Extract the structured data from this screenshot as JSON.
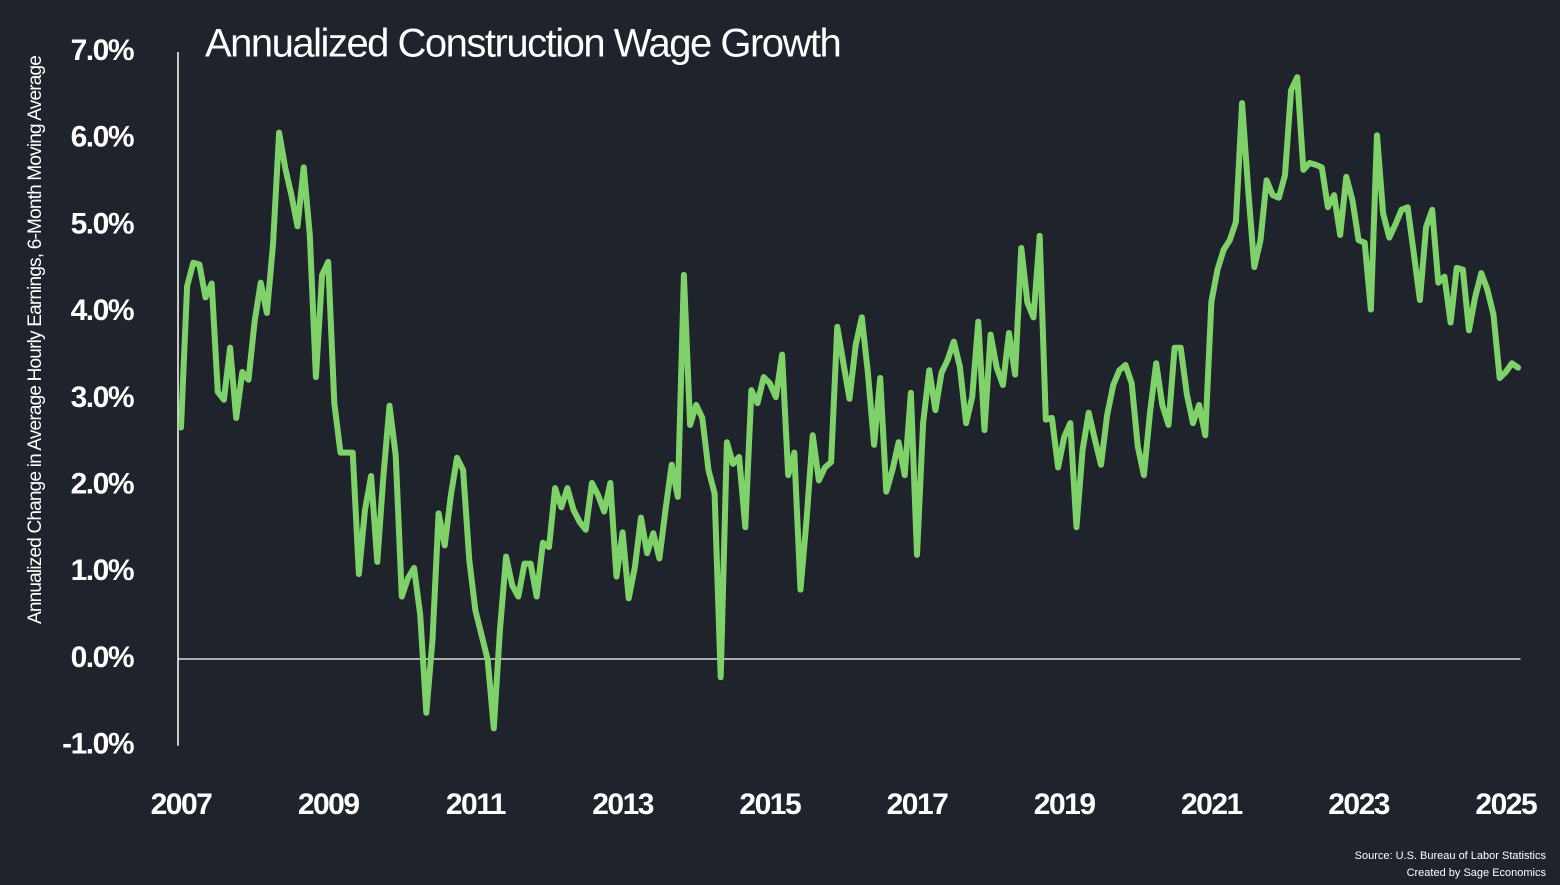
{
  "chart_data": {
    "type": "line",
    "title": "Annualized Construction Wage Growth",
    "y_label": "Annualized Change in Average Hourly Earnings, 6-Month Moving Average",
    "source": "Source: U.S. Bureau of Labor Statistics",
    "credit": "Created by Sage Economics",
    "xlim": [
      2007,
      2025.2
    ],
    "xticks": [
      2007,
      2009,
      2011,
      2013,
      2015,
      2017,
      2019,
      2021,
      2023,
      2025
    ],
    "ylim": [
      -1,
      7
    ],
    "yticks": [
      {
        "value": -1,
        "label": "-1.0%"
      },
      {
        "value": 0,
        "label": "0.0%"
      },
      {
        "value": 1,
        "label": "1.0%"
      },
      {
        "value": 2,
        "label": "2.0%"
      },
      {
        "value": 3,
        "label": "3.0%"
      },
      {
        "value": 4,
        "label": "4.0%"
      },
      {
        "value": 5,
        "label": "5.0%"
      },
      {
        "value": 6,
        "label": "6.0%"
      },
      {
        "value": 7,
        "label": "7.0%"
      }
    ],
    "x": [
      2007,
      2007.083,
      2007.167,
      2007.25,
      2007.333,
      2007.417,
      2007.5,
      2007.583,
      2007.667,
      2007.75,
      2007.833,
      2007.917,
      2008,
      2008.083,
      2008.167,
      2008.25,
      2008.333,
      2008.417,
      2008.5,
      2008.583,
      2008.667,
      2008.75,
      2008.833,
      2008.917,
      2009,
      2009.083,
      2009.167,
      2009.25,
      2009.333,
      2009.417,
      2009.5,
      2009.583,
      2009.667,
      2009.75,
      2009.833,
      2009.917,
      2010,
      2010.083,
      2010.167,
      2010.25,
      2010.333,
      2010.417,
      2010.5,
      2010.583,
      2010.667,
      2010.75,
      2010.833,
      2010.917,
      2011,
      2011.083,
      2011.167,
      2011.25,
      2011.333,
      2011.417,
      2011.5,
      2011.583,
      2011.667,
      2011.75,
      2011.833,
      2011.917,
      2012,
      2012.083,
      2012.167,
      2012.25,
      2012.333,
      2012.417,
      2012.5,
      2012.583,
      2012.667,
      2012.75,
      2012.833,
      2012.917,
      2013,
      2013.083,
      2013.167,
      2013.25,
      2013.333,
      2013.417,
      2013.5,
      2013.583,
      2013.667,
      2013.75,
      2013.833,
      2013.917,
      2014,
      2014.083,
      2014.167,
      2014.25,
      2014.333,
      2014.417,
      2014.5,
      2014.583,
      2014.667,
      2014.75,
      2014.833,
      2014.917,
      2015,
      2015.083,
      2015.167,
      2015.25,
      2015.333,
      2015.417,
      2015.5,
      2015.583,
      2015.667,
      2015.75,
      2015.833,
      2015.917,
      2016,
      2016.083,
      2016.167,
      2016.25,
      2016.333,
      2016.417,
      2016.5,
      2016.583,
      2016.667,
      2016.75,
      2016.833,
      2016.917,
      2017,
      2017.083,
      2017.167,
      2017.25,
      2017.333,
      2017.417,
      2017.5,
      2017.583,
      2017.667,
      2017.75,
      2017.833,
      2017.917,
      2018,
      2018.083,
      2018.167,
      2018.25,
      2018.333,
      2018.417,
      2018.5,
      2018.583,
      2018.667,
      2018.75,
      2018.833,
      2018.917,
      2019,
      2019.083,
      2019.167,
      2019.25,
      2019.333,
      2019.417,
      2019.5,
      2019.583,
      2019.667,
      2019.75,
      2019.833,
      2019.917,
      2020,
      2020.083,
      2020.167,
      2020.25,
      2020.333,
      2020.417,
      2020.5,
      2020.583,
      2020.667,
      2020.75,
      2020.833,
      2020.917,
      2021,
      2021.083,
      2021.167,
      2021.25,
      2021.333,
      2021.417,
      2021.5,
      2021.583,
      2021.667,
      2021.75,
      2021.833,
      2021.917,
      2022,
      2022.083,
      2022.167,
      2022.25,
      2022.333,
      2022.417,
      2022.5,
      2022.583,
      2022.667,
      2022.75,
      2022.833,
      2022.917,
      2023,
      2023.083,
      2023.167,
      2023.25,
      2023.333,
      2023.417,
      2023.5,
      2023.583,
      2023.667,
      2023.75,
      2023.833,
      2023.917,
      2024,
      2024.083,
      2024.167,
      2024.25,
      2024.333,
      2024.417,
      2024.5,
      2024.583,
      2024.667,
      2024.75,
      2024.833,
      2024.917,
      2025,
      2025.083,
      2025.167
    ],
    "series": [
      {
        "color": "#7fd26a",
        "values": [
          2.67,
          4.3,
          4.57,
          4.55,
          4.17,
          4.33,
          3.08,
          2.99,
          3.59,
          2.78,
          3.31,
          3.22,
          3.89,
          4.34,
          3.99,
          4.78,
          6.07,
          5.66,
          5.35,
          4.99,
          5.67,
          4.89,
          3.25,
          4.43,
          4.58,
          2.95,
          2.38,
          2.38,
          2.38,
          0.98,
          1.72,
          2.11,
          1.12,
          2.11,
          2.92,
          2.35,
          0.72,
          0.93,
          1.05,
          0.51,
          -0.62,
          0.22,
          1.68,
          1.31,
          1.89,
          2.32,
          2.18,
          1.14,
          0.56,
          0.28,
          -0.01,
          -0.8,
          0.33,
          1.18,
          0.85,
          0.72,
          1.1,
          1.1,
          0.72,
          1.34,
          1.29,
          1.97,
          1.75,
          1.97,
          1.72,
          1.58,
          1.49,
          2.03,
          1.89,
          1.7,
          2.03,
          0.95,
          1.46,
          0.7,
          1.06,
          1.63,
          1.22,
          1.45,
          1.16,
          1.72,
          2.24,
          1.87,
          4.43,
          2.7,
          2.93,
          2.78,
          2.18,
          1.91,
          -0.21,
          2.5,
          2.25,
          2.33,
          1.52,
          3.1,
          2.95,
          3.25,
          3.18,
          3.02,
          3.51,
          2.12,
          2.38,
          0.8,
          1.61,
          2.58,
          2.06,
          2.21,
          2.27,
          3.83,
          3.41,
          3.0,
          3.62,
          3.94,
          3.3,
          2.47,
          3.24,
          1.93,
          2.18,
          2.5,
          2.12,
          3.07,
          1.2,
          2.72,
          3.33,
          2.87,
          3.3,
          3.45,
          3.66,
          3.37,
          2.72,
          3.02,
          3.89,
          2.64,
          3.74,
          3.36,
          3.16,
          3.76,
          3.28,
          4.74,
          4.11,
          3.94,
          4.88,
          2.76,
          2.78,
          2.21,
          2.56,
          2.72,
          1.52,
          2.41,
          2.84,
          2.53,
          2.24,
          2.81,
          3.16,
          3.33,
          3.39,
          3.18,
          2.45,
          2.12,
          2.85,
          3.41,
          2.93,
          2.7,
          3.59,
          3.59,
          3.05,
          2.72,
          2.93,
          2.58,
          4.12,
          4.49,
          4.72,
          4.83,
          5.04,
          6.41,
          5.41,
          4.52,
          4.83,
          5.52,
          5.35,
          5.32,
          5.58,
          6.56,
          6.71,
          5.64,
          5.72,
          5.7,
          5.67,
          5.21,
          5.35,
          4.89,
          5.56,
          5.29,
          4.83,
          4.8,
          4.03,
          6.04,
          5.14,
          4.86,
          5.01,
          5.18,
          5.21,
          4.68,
          4.14,
          4.98,
          5.18,
          4.34,
          4.41,
          3.88,
          4.51,
          4.49,
          3.79,
          4.17,
          4.45,
          4.26,
          3.97,
          3.24,
          3.31,
          3.41,
          3.36
        ]
      }
    ]
  }
}
